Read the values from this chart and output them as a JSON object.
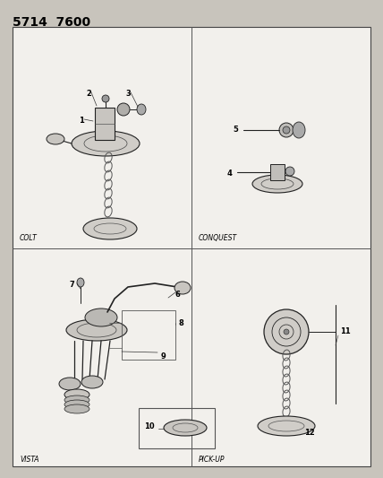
{
  "title": "5714  7600",
  "bg_color": "#c8c4bc",
  "panel_color": "#f2f0ec",
  "line_color": "#222222",
  "quadrant_labels": [
    "COLT",
    "CONQUEST",
    "VISTA",
    "PICK-UP"
  ],
  "fig_width": 4.28,
  "fig_height": 5.33,
  "dpi": 100
}
